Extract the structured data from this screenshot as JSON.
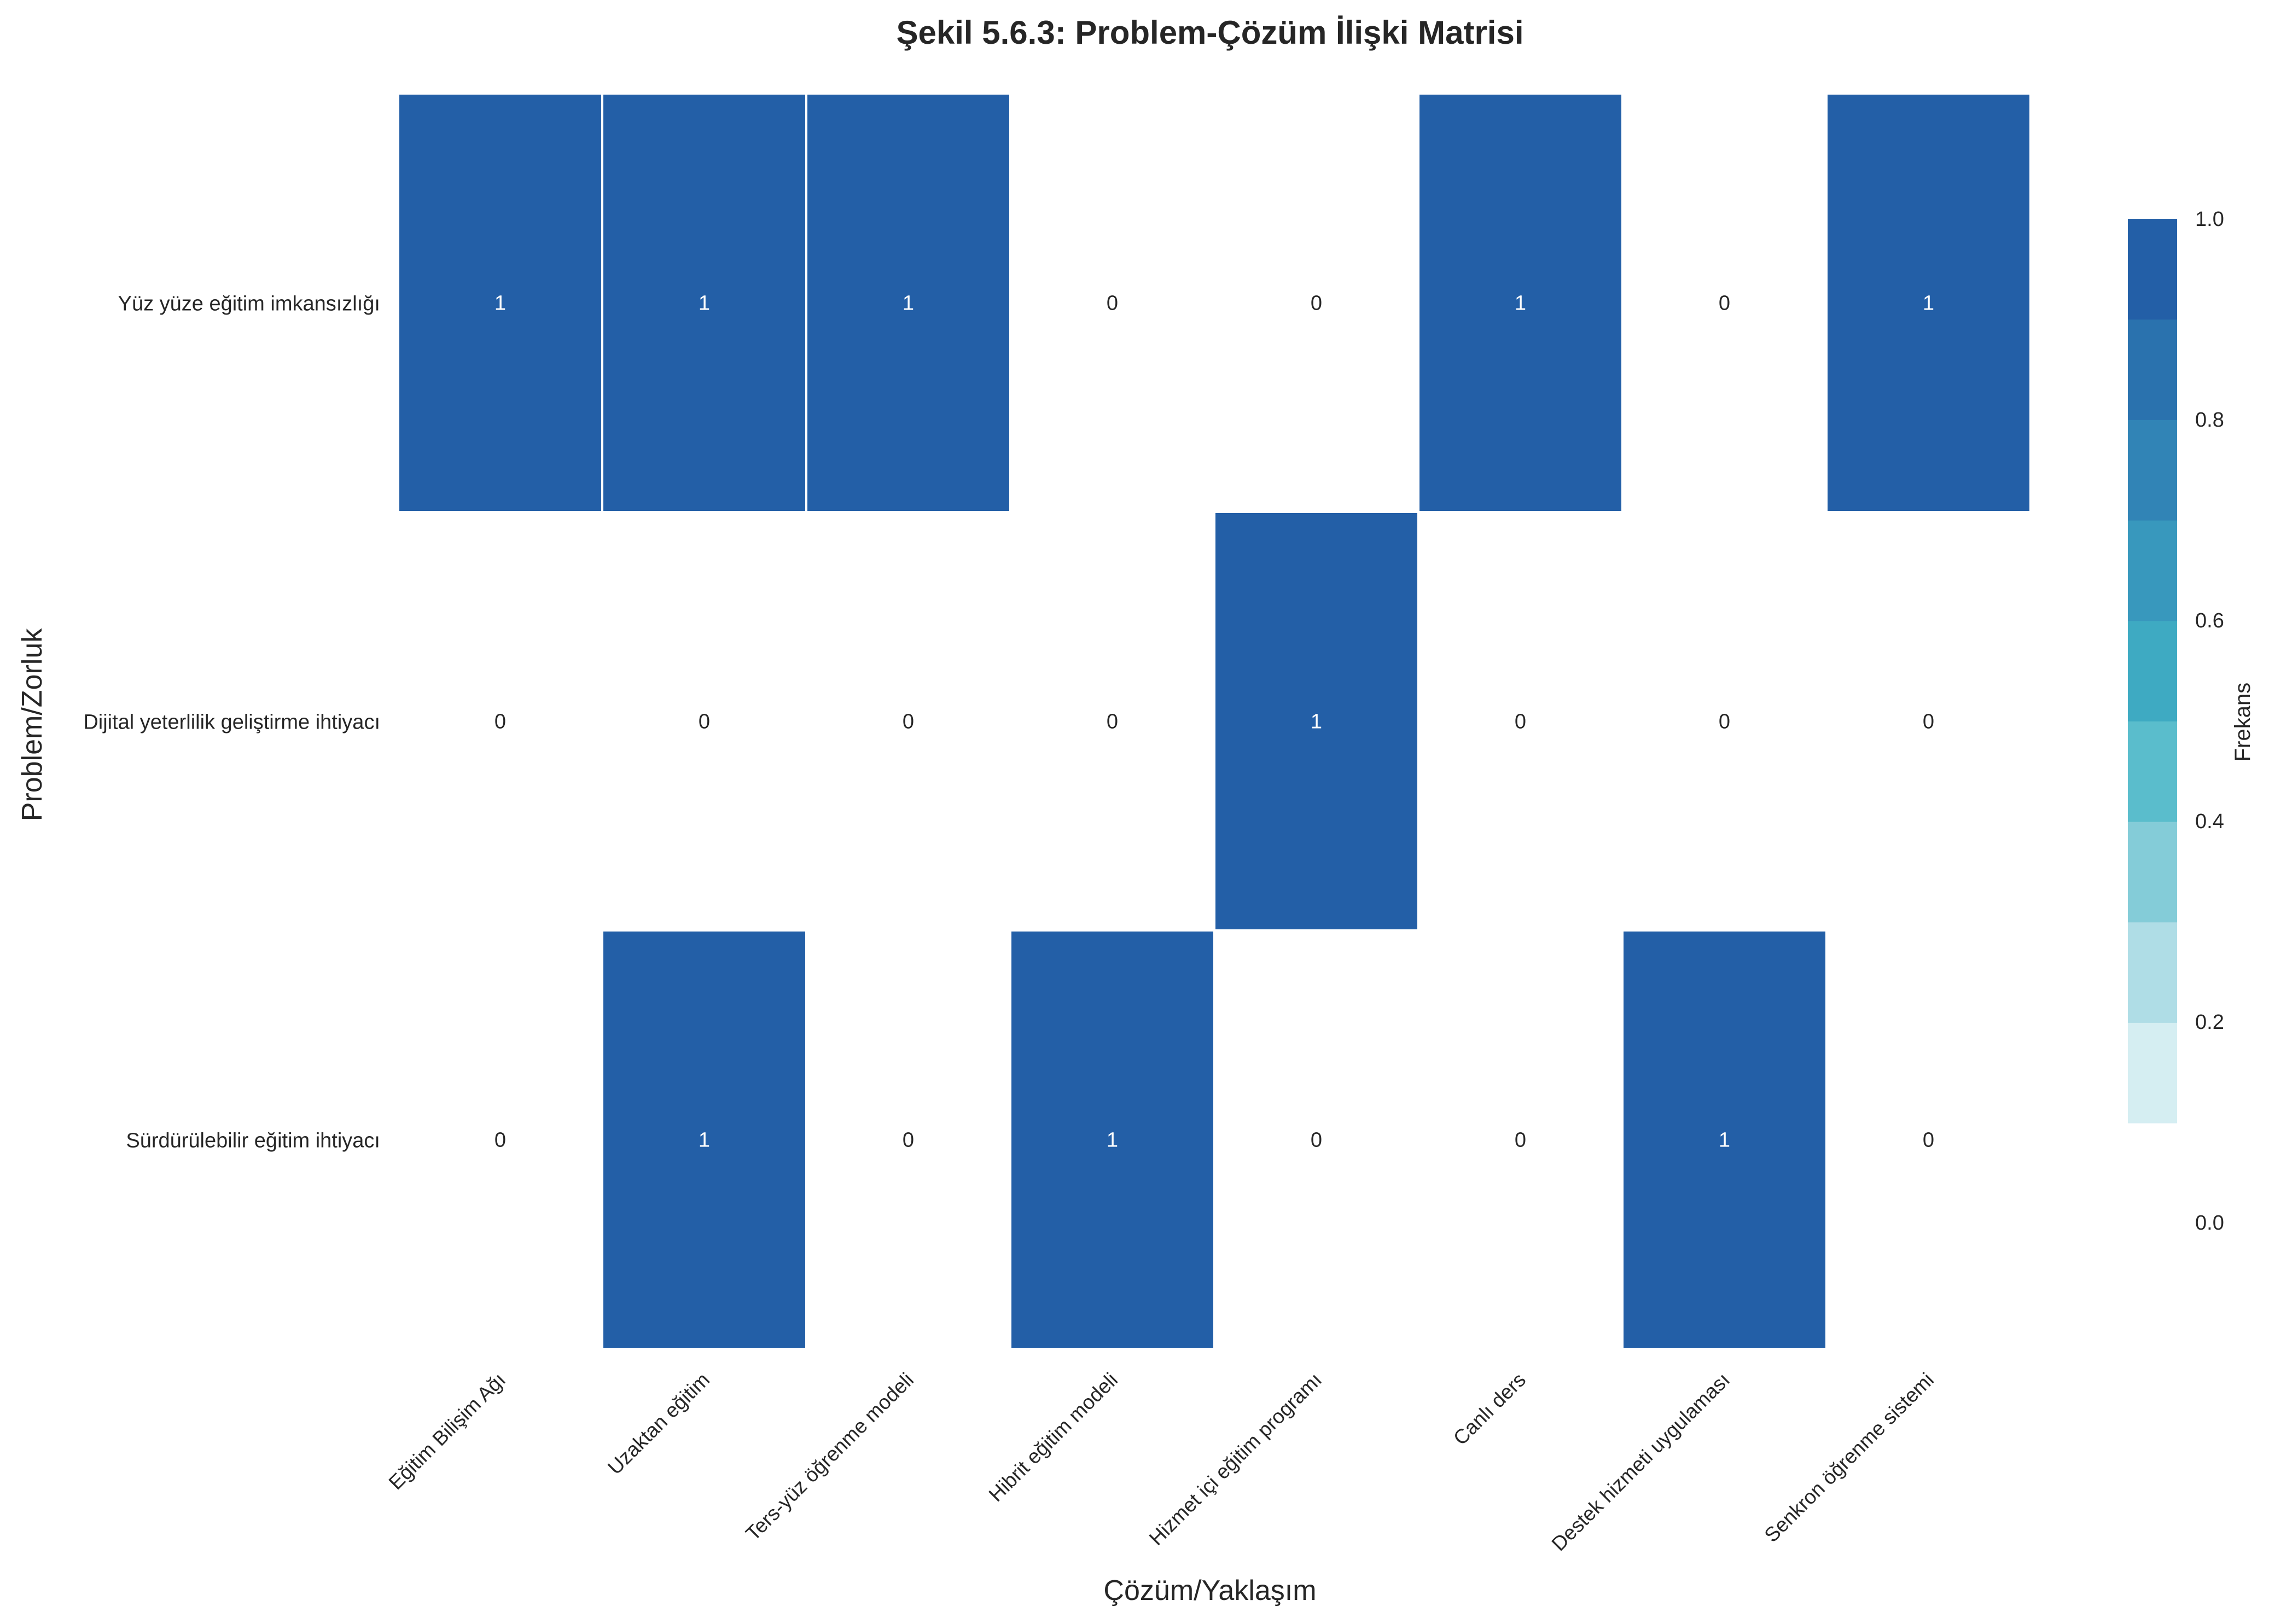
{
  "chart_data": {
    "type": "heatmap",
    "title": "Şekil 5.6.3: Problem-Çözüm İlişki Matrisi",
    "xlabel": "Çözüm/Yaklaşım",
    "ylabel": "Problem/Zorluk",
    "x_categories": [
      "Eğitim Bilişim Ağı",
      "Uzaktan eğitim",
      "Ters-yüz öğrenme modeli",
      "Hibrit eğitim modeli",
      "Hizmet içi eğitim programı",
      "Canlı ders",
      "Destek hizmeti uygulaması",
      "Senkron öğrenme sistemi"
    ],
    "y_categories": [
      "Yüz yüze eğitim imkansızlığı",
      "Dijital yeterlilik geliştirme ihtiyacı",
      "Sürdürülebilir eğitim ihtiyacı"
    ],
    "values": [
      [
        1,
        1,
        1,
        0,
        0,
        1,
        0,
        1
      ],
      [
        0,
        0,
        0,
        0,
        1,
        0,
        0,
        0
      ],
      [
        0,
        1,
        0,
        1,
        0,
        0,
        1,
        0
      ]
    ],
    "colorbar": {
      "label": "Frekans",
      "ticks": [
        "0.0",
        "0.2",
        "0.4",
        "0.6",
        "0.8",
        "1.0"
      ],
      "range": [
        0,
        1
      ],
      "colors": [
        "#d5eef2",
        "#afdde6",
        "#84ccd8",
        "#5abdcc",
        "#3eaac2",
        "#3898bd",
        "#3184b6",
        "#2a72ae",
        "#235fa7"
      ]
    },
    "cell_color_one": "#235fa7",
    "cell_color_zero": "#ffffff",
    "annotation_color_one": "#ffffff",
    "annotation_color_zero": "#262626"
  }
}
